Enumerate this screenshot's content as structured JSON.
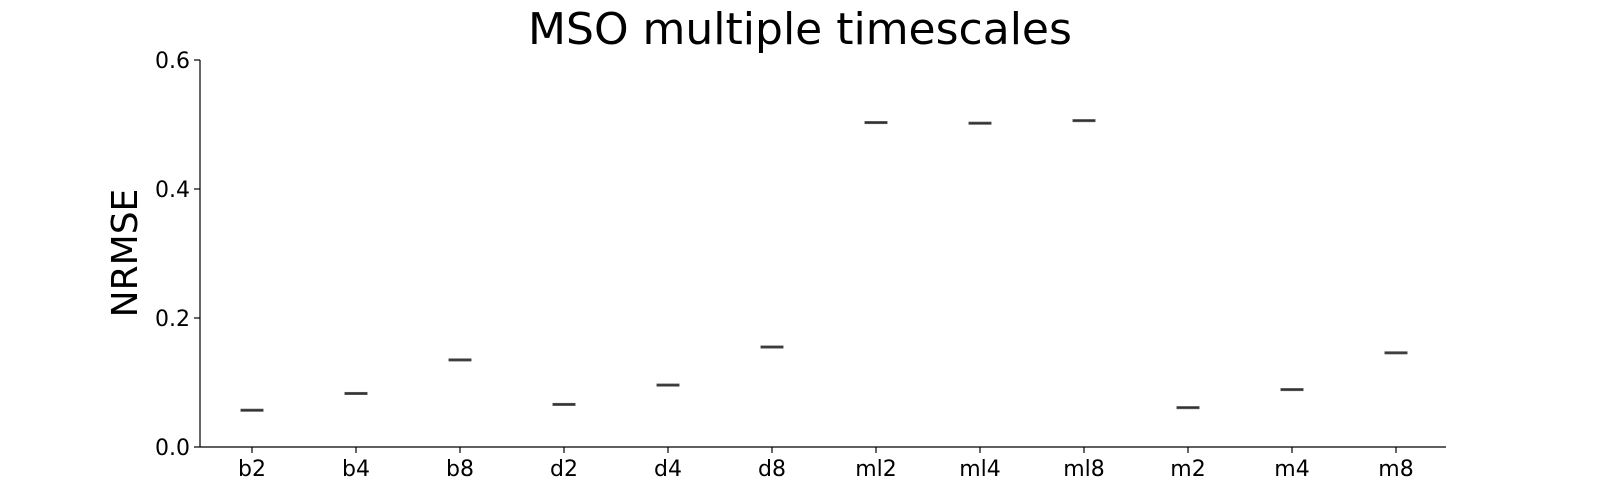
{
  "chart_data": {
    "type": "box",
    "title": "MSO multiple timescales",
    "xlabel": "",
    "ylabel": "NRMSE",
    "ylim": [
      0.0,
      0.6
    ],
    "yticks": [
      0.0,
      0.2,
      0.4,
      0.6
    ],
    "ytick_labels": [
      "0.0",
      "0.2",
      "0.4",
      "0.6"
    ],
    "categories": [
      "b2",
      "b4",
      "b8",
      "d2",
      "d4",
      "d8",
      "ml2",
      "ml4",
      "ml8",
      "m2",
      "m4",
      "m8"
    ],
    "values": [
      0.057,
      0.083,
      0.135,
      0.066,
      0.096,
      0.155,
      0.503,
      0.502,
      0.506,
      0.061,
      0.089,
      0.146
    ],
    "grid": false,
    "legend": "none",
    "colors": {
      "box": "#555555",
      "median": "#333333",
      "axis": "#000000"
    }
  }
}
